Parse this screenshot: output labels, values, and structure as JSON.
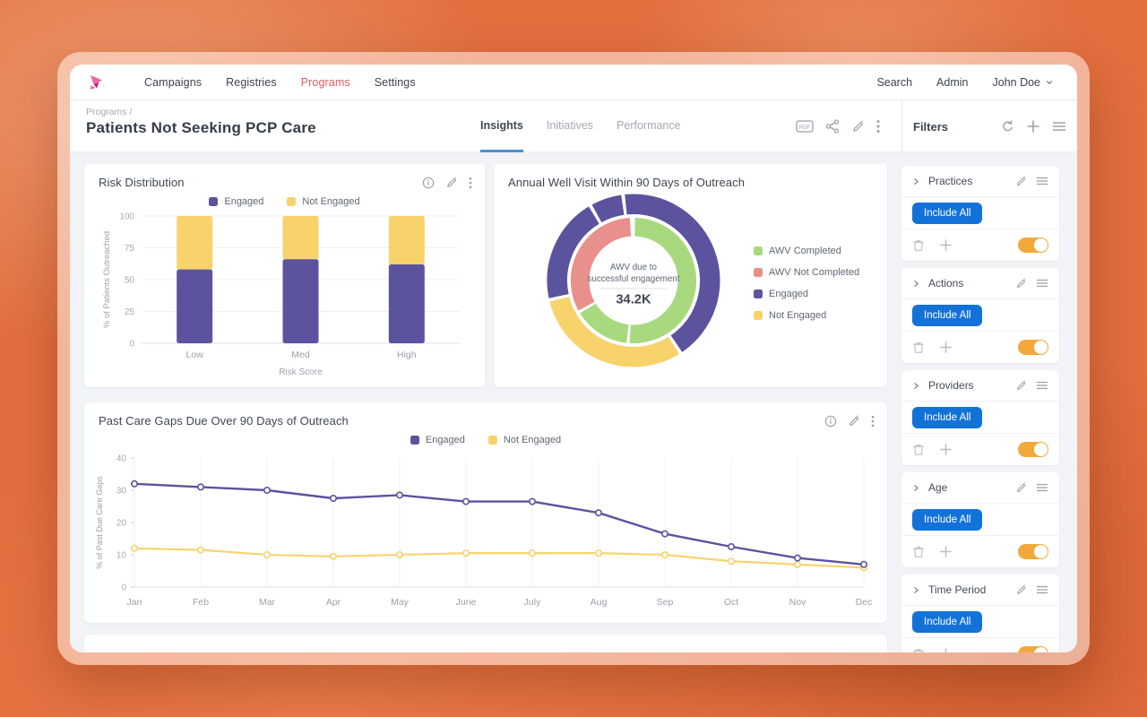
{
  "nav": {
    "items": [
      {
        "label": "Campaigns",
        "active": false
      },
      {
        "label": "Registries",
        "active": false
      },
      {
        "label": "Programs",
        "active": true
      },
      {
        "label": "Settings",
        "active": false
      }
    ],
    "right": [
      "Search",
      "Admin"
    ],
    "user": "John Doe"
  },
  "header": {
    "breadcrumb": "Programs /",
    "title": "Patients Not Seeking PCP Care",
    "tabs": [
      {
        "label": "Insights",
        "active": true
      },
      {
        "label": "Initiatives",
        "active": false
      },
      {
        "label": "Performance",
        "active": false
      }
    ],
    "action_icons": [
      "pdf-export",
      "share",
      "edit",
      "more"
    ]
  },
  "filters": {
    "title": "Filters",
    "header_icons": [
      "refresh",
      "add",
      "menu"
    ],
    "sections": [
      {
        "name": "Practices",
        "include_label": "Include All",
        "toggle_on": true
      },
      {
        "name": "Actions",
        "include_label": "Include All",
        "toggle_on": true
      },
      {
        "name": "Providers",
        "include_label": "Include All",
        "toggle_on": true
      },
      {
        "name": "Age",
        "include_label": "Include All",
        "toggle_on": true
      },
      {
        "name": "Time Period",
        "include_label": "Include All",
        "toggle_on": true
      }
    ]
  },
  "cards": {
    "risk": {
      "title": "Risk Distribution",
      "action_icons": [
        "info",
        "edit",
        "more"
      ]
    },
    "awv": {
      "title": "Annual Well Visit Within 90 Days of Outreach",
      "center_line1": "AWV due to",
      "center_line2": "successful engagement",
      "center_value": "34.2K"
    },
    "gaps": {
      "title": "Past Care Gaps Due Over 90 Days of Outreach",
      "action_icons": [
        "info",
        "edit",
        "more"
      ]
    }
  },
  "colors": {
    "purple": "#5c539e",
    "yellow": "#f8d26a",
    "green": "#a8d97f",
    "salmon": "#e8908c",
    "blue_button": "#1372d8",
    "toggle_orange": "#f2a93b",
    "tab_underline": "#4a8fd6",
    "nav_active_red": "#e05c5c"
  },
  "chart_data": [
    {
      "type": "bar",
      "stacked": true,
      "title": "Risk Distribution",
      "categories": [
        "Low",
        "Med",
        "High"
      ],
      "series": [
        {
          "name": "Engaged",
          "color": "#5c539e",
          "values": [
            58,
            66,
            62
          ]
        },
        {
          "name": "Not Engaged",
          "color": "#f8d26a",
          "values": [
            42,
            34,
            38
          ]
        }
      ],
      "xlabel": "Risk Score",
      "ylabel": "% of Patients Outreached",
      "ylim": [
        0,
        100
      ],
      "yticks": [
        0,
        25,
        50,
        75,
        100
      ],
      "grid": "horizontal",
      "legend_position": "top"
    },
    {
      "type": "pie",
      "subtype": "double-ring-donut",
      "title": "Annual Well Visit Within 90 Days of Outreach",
      "center_label": "AWV due to successful engagement",
      "center_value": "34.2K",
      "rings": [
        {
          "name": "outer",
          "segments": [
            {
              "label": "Engaged",
              "color": "#5c539e",
              "start": -7,
              "end": 147
            },
            {
              "label": "Not Engaged",
              "color": "#f8d26a",
              "start": 147,
              "end": 257
            },
            {
              "label": "Engaged",
              "color": "#5c539e",
              "start": 257,
              "end": 330
            },
            {
              "label": "Engaged",
              "color": "#5c539e",
              "start": 330,
              "end": 353
            }
          ]
        },
        {
          "name": "inner",
          "segments": [
            {
              "label": "AWV Completed",
              "color": "#a8d97f",
              "start": 0,
              "end": 185
            },
            {
              "label": "AWV Completed",
              "color": "#a8d97f",
              "start": 185,
              "end": 240
            },
            {
              "label": "AWV Not Completed",
              "color": "#e8908c",
              "start": 240,
              "end": 358
            }
          ]
        }
      ],
      "legend": [
        {
          "label": "AWV Completed",
          "color": "#a8d97f"
        },
        {
          "label": "AWV Not Completed",
          "color": "#e8908c"
        },
        {
          "label": "Engaged",
          "color": "#5c539e"
        },
        {
          "label": "Not Engaged",
          "color": "#f8d26a"
        }
      ],
      "legend_position": "right"
    },
    {
      "type": "line",
      "title": "Past Care Gaps Due Over 90 Days of Outreach",
      "x": [
        "Jan",
        "Feb",
        "Mar",
        "Apr",
        "May",
        "June",
        "July",
        "Aug",
        "Sep",
        "Oct",
        "Nov",
        "Dec"
      ],
      "series": [
        {
          "name": "Engaged",
          "color": "#5c539e",
          "values": [
            32,
            31,
            30,
            27.5,
            28.5,
            26.5,
            26.5,
            23,
            16.5,
            12.5,
            9,
            7
          ]
        },
        {
          "name": "Not Engaged",
          "color": "#f8d26a",
          "values": [
            12,
            11.5,
            10,
            9.5,
            10,
            10.5,
            10.5,
            10.5,
            10,
            8,
            7,
            6
          ]
        }
      ],
      "ylabel": "% of Past Due Care Gaps",
      "ylim": [
        0,
        40
      ],
      "yticks": [
        0,
        10,
        20,
        30,
        40
      ],
      "grid": "vertical",
      "legend_position": "top"
    }
  ]
}
